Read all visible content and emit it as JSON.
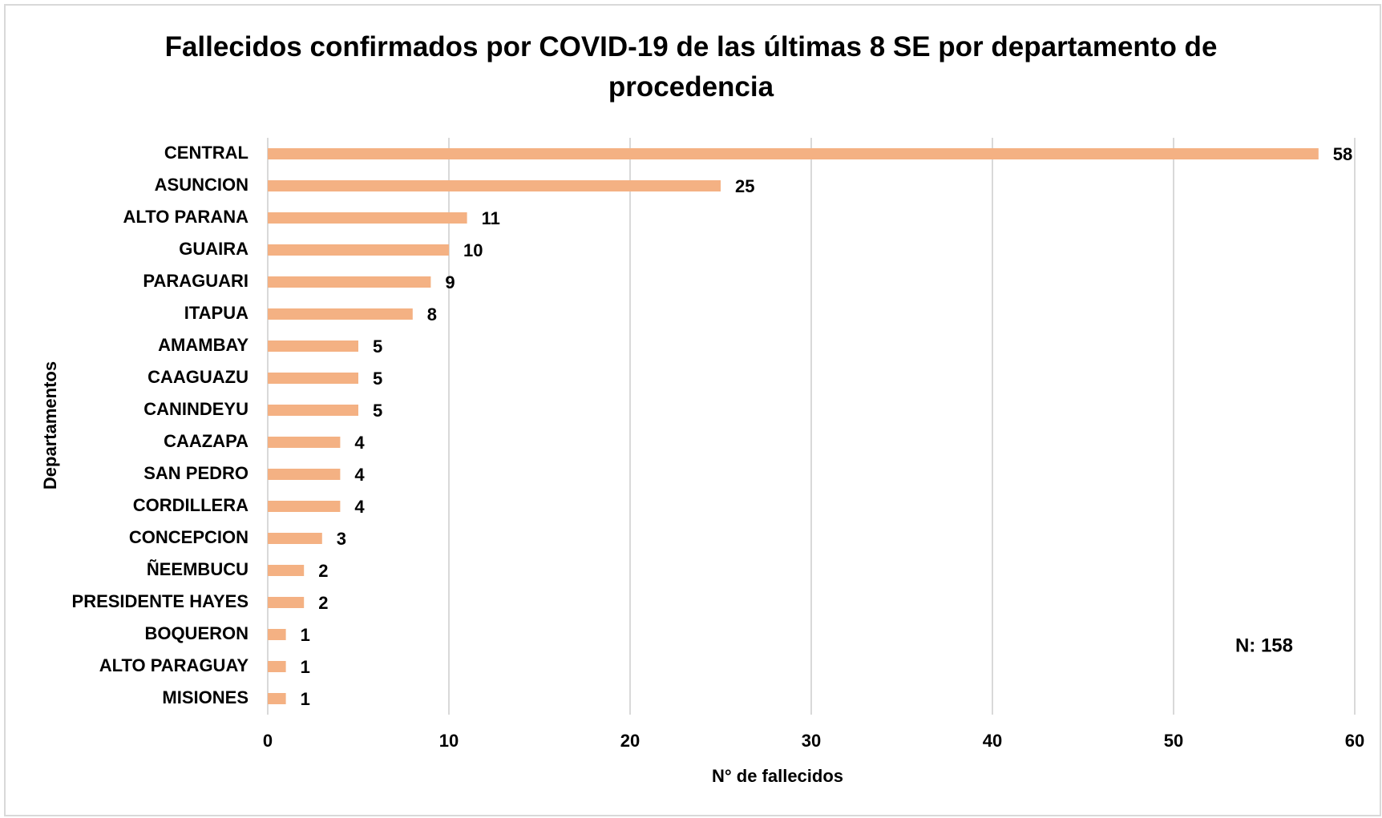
{
  "chart_data": {
    "type": "bar",
    "orientation": "horizontal",
    "title": "Fallecidos confirmados por COVID-19 de las últimas 8 SE por departamento de procedencia",
    "x_label": "N° de fallecidos",
    "y_label": "Departamentos",
    "annotation": "N: 158",
    "categories": [
      "CENTRAL",
      "ASUNCION",
      "ALTO PARANA",
      "GUAIRA",
      "PARAGUARI",
      "ITAPUA",
      "AMAMBAY",
      "CAAGUAZU",
      "CANINDEYU",
      "CAAZAPA",
      "SAN PEDRO",
      "CORDILLERA",
      "CONCEPCION",
      "ÑEEMBUCU",
      "PRESIDENTE HAYES",
      "BOQUERON",
      "ALTO PARAGUAY",
      "MISIONES"
    ],
    "values": [
      58,
      25,
      11,
      10,
      9,
      8,
      5,
      5,
      5,
      4,
      4,
      4,
      3,
      2,
      2,
      1,
      1,
      1
    ],
    "color": "#f4b183",
    "xlim": [
      0,
      60
    ],
    "xticks": [
      0,
      10,
      20,
      30,
      40,
      50,
      60
    ],
    "grid": true
  }
}
